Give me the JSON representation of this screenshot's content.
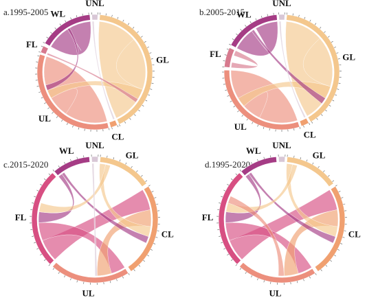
{
  "panels": [
    {
      "title": "a.1995-2005",
      "sectors": [
        {
          "code": "UNL",
          "color": "#d8c7d6",
          "start": -3,
          "end": 3
        },
        {
          "code": "GL",
          "color": "#f4c78d",
          "start": 5,
          "end": 155
        },
        {
          "code": "CL",
          "color": "#f0a070",
          "start": 157,
          "end": 164
        },
        {
          "code": "UL",
          "color": "#ec8f7d",
          "start": 166,
          "end": 288
        },
        {
          "code": "FL",
          "color": "#d77a8e",
          "start": 290,
          "end": 297
        },
        {
          "code": "WL",
          "color": "#a53c85",
          "start": 300,
          "end": 355
        }
      ],
      "links": [
        {
          "from": "GL",
          "to": "GL",
          "weight": 0.7
        },
        {
          "from": "UL",
          "to": "UL",
          "weight": 0.6
        },
        {
          "from": "WL",
          "to": "WL",
          "weight": 0.5
        },
        {
          "from": "GL",
          "to": "UL",
          "weight": 0.08
        },
        {
          "from": "WL",
          "to": "UL",
          "weight": 0.05
        },
        {
          "from": "UNL",
          "to": "CL",
          "weight": 0.04
        },
        {
          "from": "FL",
          "to": "GL",
          "weight": 0.03
        }
      ]
    },
    {
      "title": "b.2005-2015",
      "sectors": [
        {
          "code": "UNL",
          "color": "#d8c7d6",
          "start": -3,
          "end": 3
        },
        {
          "code": "GL",
          "color": "#f4c78d",
          "start": 5,
          "end": 150
        },
        {
          "code": "CL",
          "color": "#f0a070",
          "start": 152,
          "end": 160
        },
        {
          "code": "UL",
          "color": "#ec8f7d",
          "start": 162,
          "end": 272
        },
        {
          "code": "FL",
          "color": "#d77a8e",
          "start": 275,
          "end": 295
        },
        {
          "code": "WL",
          "color": "#a53c85",
          "start": 298,
          "end": 355
        }
      ],
      "links": [
        {
          "from": "GL",
          "to": "GL",
          "weight": 0.7
        },
        {
          "from": "UL",
          "to": "UL",
          "weight": 0.6
        },
        {
          "from": "WL",
          "to": "WL",
          "weight": 0.45
        },
        {
          "from": "FL",
          "to": "FL",
          "weight": 0.3
        },
        {
          "from": "GL",
          "to": "UL",
          "weight": 0.1
        },
        {
          "from": "WL",
          "to": "GL",
          "weight": 0.05
        },
        {
          "from": "UNL",
          "to": "CL",
          "weight": 0.04
        }
      ]
    },
    {
      "title": "c.2015-2020",
      "sectors": [
        {
          "code": "UNL",
          "color": "#d8c7d6",
          "start": -3,
          "end": 3
        },
        {
          "code": "GL",
          "color": "#f4c78d",
          "start": 5,
          "end": 55
        },
        {
          "code": "CL",
          "color": "#f0a070",
          "start": 58,
          "end": 145
        },
        {
          "code": "UL",
          "color": "#ec8f7d",
          "start": 148,
          "end": 222
        },
        {
          "code": "FL",
          "color": "#d74f82",
          "start": 225,
          "end": 318
        },
        {
          "code": "WL",
          "color": "#a53c85",
          "start": 320,
          "end": 355
        }
      ],
      "links": [
        {
          "from": "FL",
          "to": "CL",
          "weight": 0.25
        },
        {
          "from": "FL",
          "to": "UL",
          "weight": 0.2
        },
        {
          "from": "CL",
          "to": "UL",
          "weight": 0.2
        },
        {
          "from": "GL",
          "to": "CL",
          "weight": 0.12
        },
        {
          "from": "WL",
          "to": "FL",
          "weight": 0.12
        },
        {
          "from": "WL",
          "to": "CL",
          "weight": 0.08
        },
        {
          "from": "GL",
          "to": "FL",
          "weight": 0.1
        },
        {
          "from": "UNL",
          "to": "UL",
          "weight": 0.03
        }
      ]
    },
    {
      "title": "d.1995-2020",
      "sectors": [
        {
          "code": "UNL",
          "color": "#d8c7d6",
          "start": -3,
          "end": 3
        },
        {
          "code": "GL",
          "color": "#f4c78d",
          "start": 5,
          "end": 55
        },
        {
          "code": "CL",
          "color": "#f0a070",
          "start": 58,
          "end": 145
        },
        {
          "code": "UL",
          "color": "#ec8f7d",
          "start": 148,
          "end": 222
        },
        {
          "code": "FL",
          "color": "#d74f82",
          "start": 225,
          "end": 318
        },
        {
          "code": "WL",
          "color": "#a53c85",
          "start": 320,
          "end": 355
        }
      ],
      "links": [
        {
          "from": "FL",
          "to": "CL",
          "weight": 0.25
        },
        {
          "from": "FL",
          "to": "UL",
          "weight": 0.2
        },
        {
          "from": "CL",
          "to": "UL",
          "weight": 0.2
        },
        {
          "from": "GL",
          "to": "CL",
          "weight": 0.12
        },
        {
          "from": "WL",
          "to": "FL",
          "weight": 0.12
        },
        {
          "from": "WL",
          "to": "CL",
          "weight": 0.08
        },
        {
          "from": "GL",
          "to": "FL",
          "weight": 0.1
        },
        {
          "from": "UL",
          "to": "FL",
          "weight": 0.08
        }
      ]
    }
  ]
}
